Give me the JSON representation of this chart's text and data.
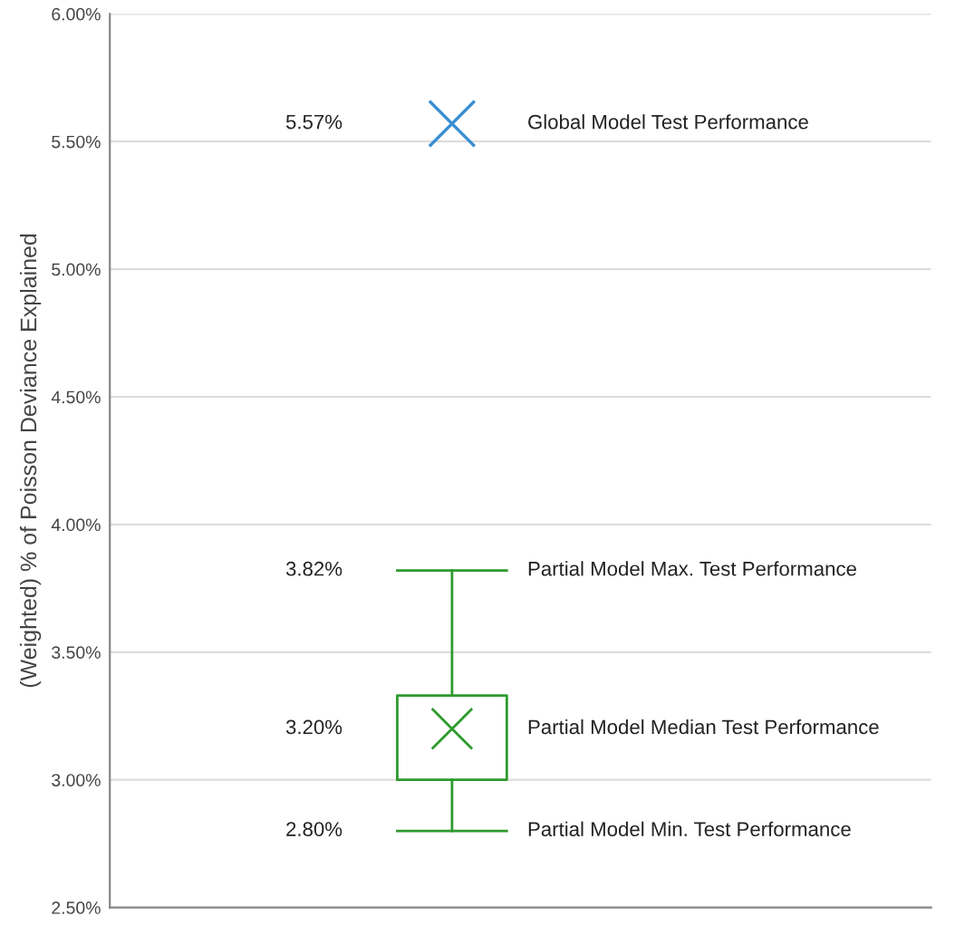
{
  "chart_data": {
    "type": "box",
    "categories": [
      null
    ],
    "ylabel": "(Weighted) % of Poisson Deviance Explained",
    "ylim": [
      2.5,
      6.0
    ],
    "yticks": [
      {
        "value": 2.5,
        "label": "2.50%"
      },
      {
        "value": 3.0,
        "label": "3.00%"
      },
      {
        "value": 3.5,
        "label": "3.50%"
      },
      {
        "value": 4.0,
        "label": "4.00%"
      },
      {
        "value": 4.5,
        "label": "4.50%"
      },
      {
        "value": 5.0,
        "label": "5.00%"
      },
      {
        "value": 5.5,
        "label": "5.50%"
      },
      {
        "value": 6.0,
        "label": "6.00%"
      }
    ],
    "grid": "y",
    "marker": "cross",
    "series": [
      {
        "color": "#2e9a2e",
        "boxes": [
          {
            "low": 2.8,
            "q1": 3.0,
            "median": 3.2,
            "q3": 3.33,
            "high": 3.82
          }
        ]
      },
      {
        "type": "scatter",
        "color": "#3a8fd0",
        "values": [
          5.57
        ]
      }
    ],
    "annotations": [
      "5.57%",
      "Global Model Test Performance",
      "3.82%",
      "Partial Model Max. Test Performance",
      "3.20%",
      "Partial Model Median Test Performance",
      "2.80%",
      "Partial Model Min. Test Performance"
    ]
  }
}
